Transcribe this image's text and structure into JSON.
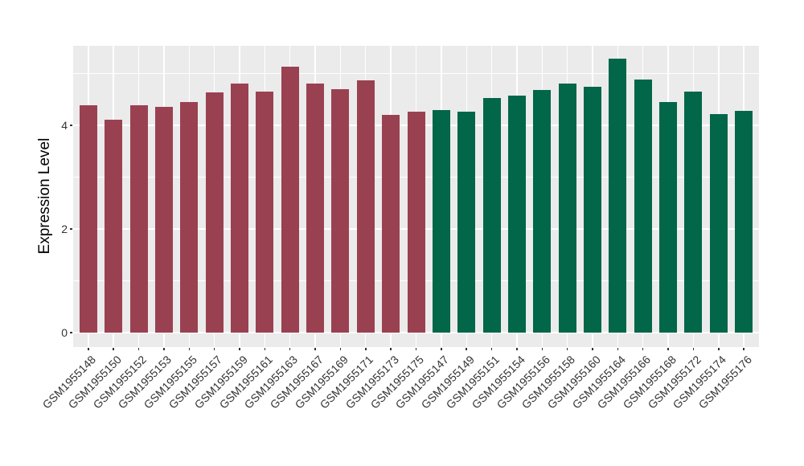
{
  "chart_data": {
    "type": "bar",
    "title": "",
    "xlabel": "",
    "ylabel": "Expression Level",
    "ylim": [
      -0.28,
      5.53
    ],
    "y_ticks": [
      0,
      2,
      4
    ],
    "y_minor_gridlines": [
      1,
      3,
      5
    ],
    "grid": "on",
    "legend": "none",
    "categories": [
      "GSM1955148",
      "GSM1955150",
      "GSM1955152",
      "GSM1955153",
      "GSM1955155",
      "GSM1955157",
      "GSM1955159",
      "GSM1955161",
      "GSM1955163",
      "GSM1955167",
      "GSM1955169",
      "GSM1955171",
      "GSM1955173",
      "GSM1955175",
      "GSM1955147",
      "GSM1955149",
      "GSM1955151",
      "GSM1955154",
      "GSM1955156",
      "GSM1955158",
      "GSM1955160",
      "GSM1955164",
      "GSM1955166",
      "GSM1955168",
      "GSM1955172",
      "GSM1955174",
      "GSM1955176"
    ],
    "values": [
      4.38,
      4.11,
      4.38,
      4.36,
      4.45,
      4.64,
      4.8,
      4.65,
      5.13,
      4.8,
      4.69,
      4.87,
      4.2,
      4.26,
      4.3,
      4.26,
      4.53,
      4.58,
      4.68,
      4.8,
      4.75,
      5.28,
      4.89,
      4.45,
      4.65,
      4.21,
      4.28
    ],
    "group_split_index": 14,
    "group_colors": {
      "left_group": "#9A4151",
      "right_group": "#026649"
    }
  },
  "style": {
    "panel_background": "#EBEBEB",
    "gridline_color": "#FFFFFF",
    "axis_text_color": "#333333",
    "axis_title_color": "#000000",
    "tick_color": "#333333",
    "page_background": "#FFFFFF"
  }
}
